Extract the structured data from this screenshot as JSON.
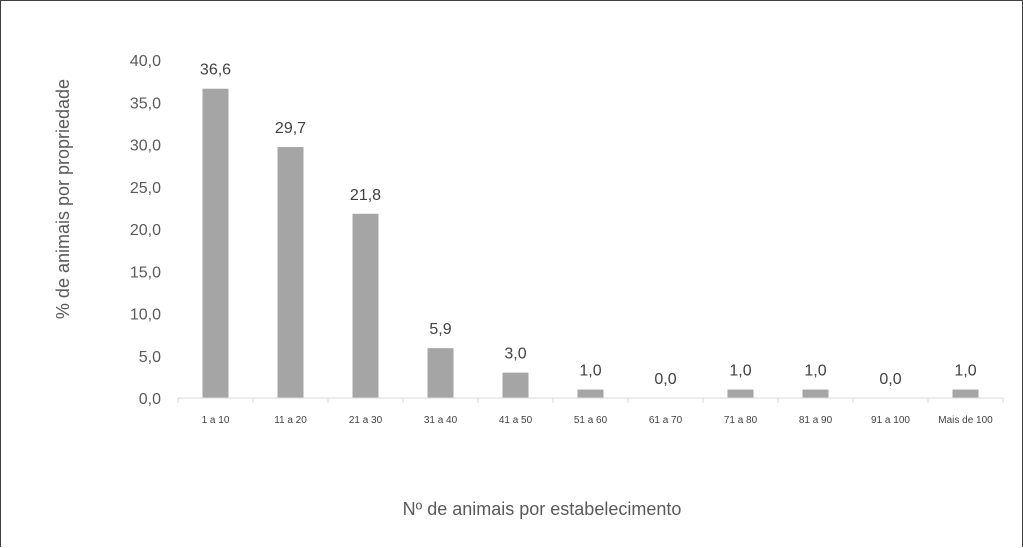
{
  "chart_data": {
    "type": "bar",
    "title": "",
    "xlabel": "Nº de animais por estabelecimento",
    "ylabel": "% de animais por propriedade",
    "ylim": [
      0,
      40
    ],
    "ytick_labels": [
      "0,0",
      "5,0",
      "10,0",
      "15,0",
      "20,0",
      "25,0",
      "30,0",
      "35,0",
      "40,0"
    ],
    "categories": [
      "1 a 10",
      "11 a 20",
      "21 a 30",
      "31 a 40",
      "41 a 50",
      "51 a 60",
      "61 a 70",
      "71 a 80",
      "81 a 90",
      "91 a 100",
      "Mais de 100"
    ],
    "values": [
      36.6,
      29.7,
      21.8,
      5.9,
      3.0,
      1.0,
      0.0,
      1.0,
      1.0,
      0.0,
      1.0
    ],
    "data_labels": [
      "36,6",
      "29,7",
      "21,8",
      "5,9",
      "3,0",
      "1,0",
      "0,0",
      "1,0",
      "1,0",
      "0,0",
      "1,0"
    ],
    "bar_color": "#a5a5a5",
    "grid": false,
    "legend": "none"
  }
}
